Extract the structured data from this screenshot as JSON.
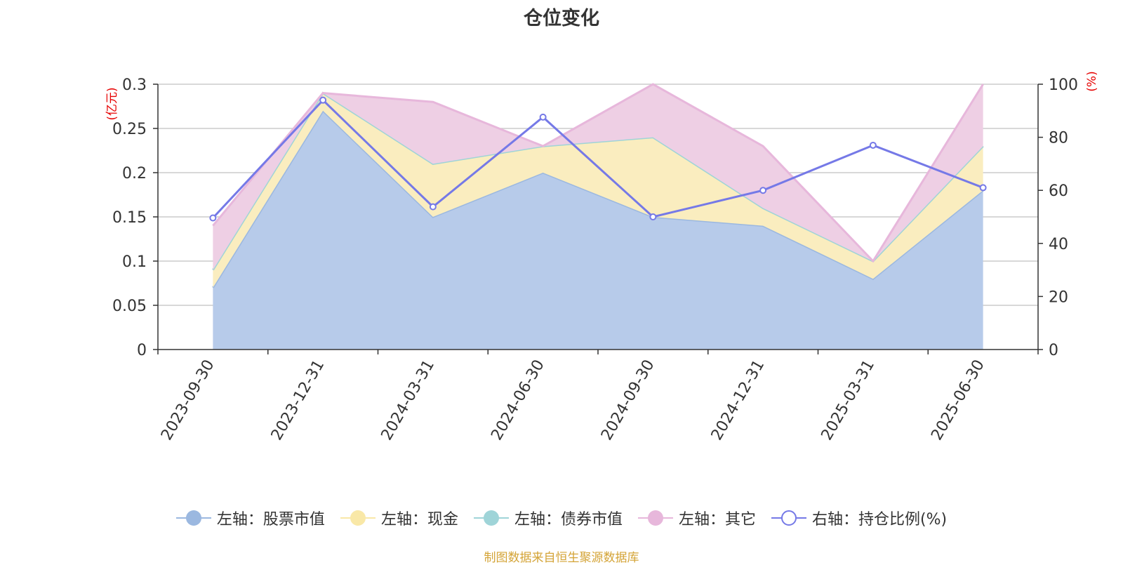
{
  "chart_data": {
    "type": "area",
    "title": "仓位变化",
    "left_axis_unit": "(亿元)",
    "right_axis_unit": "(%)",
    "categories": [
      "2023-09-30",
      "2023-12-31",
      "2024-03-31",
      "2024-06-30",
      "2024-09-30",
      "2024-12-31",
      "2025-03-31",
      "2025-06-30"
    ],
    "y_left_range": [
      0,
      0.3
    ],
    "y_left_ticks": [
      "0",
      "0.05",
      "0.1",
      "0.15",
      "0.2",
      "0.25",
      "0.3"
    ],
    "y_right_range": [
      0,
      100
    ],
    "y_right_ticks": [
      "0",
      "20",
      "40",
      "60",
      "80",
      "100"
    ],
    "stacked": true,
    "grid": true,
    "series": [
      {
        "name": "左轴：股票市值",
        "axis": "left",
        "type": "area",
        "color": "#9bb8e0",
        "fill": "#b7cbea",
        "values": [
          0.07,
          0.27,
          0.15,
          0.2,
          0.15,
          0.14,
          0.08,
          0.18
        ]
      },
      {
        "name": "左轴：现金",
        "axis": "left",
        "type": "area",
        "color": "#f9e8a7",
        "fill": "#faedbf",
        "values": [
          0.02,
          0.02,
          0.06,
          0.03,
          0.09,
          0.02,
          0.02,
          0.05
        ]
      },
      {
        "name": "左轴：债券市值",
        "axis": "left",
        "type": "area",
        "color": "#9fd4d8",
        "fill": "#c3e6e8",
        "values": [
          0,
          0,
          0,
          0,
          0,
          0,
          0,
          0
        ]
      },
      {
        "name": "左轴：其它",
        "axis": "left",
        "type": "area",
        "color": "#e7b7db",
        "fill": "#eecfe4",
        "values": [
          0.05,
          0.0,
          0.07,
          0.0,
          0.06,
          0.07,
          0.0,
          0.07
        ]
      },
      {
        "name": "右轴：持仓比例(%)",
        "axis": "right",
        "type": "line",
        "color": "#7579e7",
        "values": [
          49.6,
          94.0,
          53.8,
          87.6,
          50.0,
          60.0,
          77.0,
          61.0
        ]
      }
    ],
    "legend_position": "bottom"
  },
  "legend": [
    {
      "label": "左轴：股票市值",
      "marker": "circle-filled",
      "color": "#9bb8e0"
    },
    {
      "label": "左轴：现金",
      "marker": "circle-filled",
      "color": "#f9e8a7"
    },
    {
      "label": "左轴：债券市值",
      "marker": "circle-filled",
      "color": "#9fd4d8"
    },
    {
      "label": "左轴：其它",
      "marker": "circle-filled",
      "color": "#e7b7db"
    },
    {
      "label": "右轴：持仓比例(%)",
      "marker": "circle-hollow",
      "color": "#7579e7"
    }
  ],
  "source_note": "制图数据来自恒生聚源数据库"
}
